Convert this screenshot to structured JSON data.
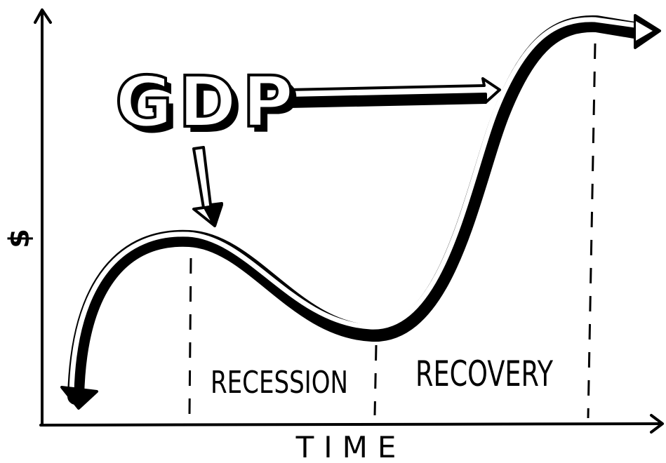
{
  "diagram": {
    "title": "GDP",
    "y_axis_label": "$",
    "x_axis_label": "TIME",
    "phases": [
      "RECESSION",
      "RECOVERY"
    ]
  }
}
